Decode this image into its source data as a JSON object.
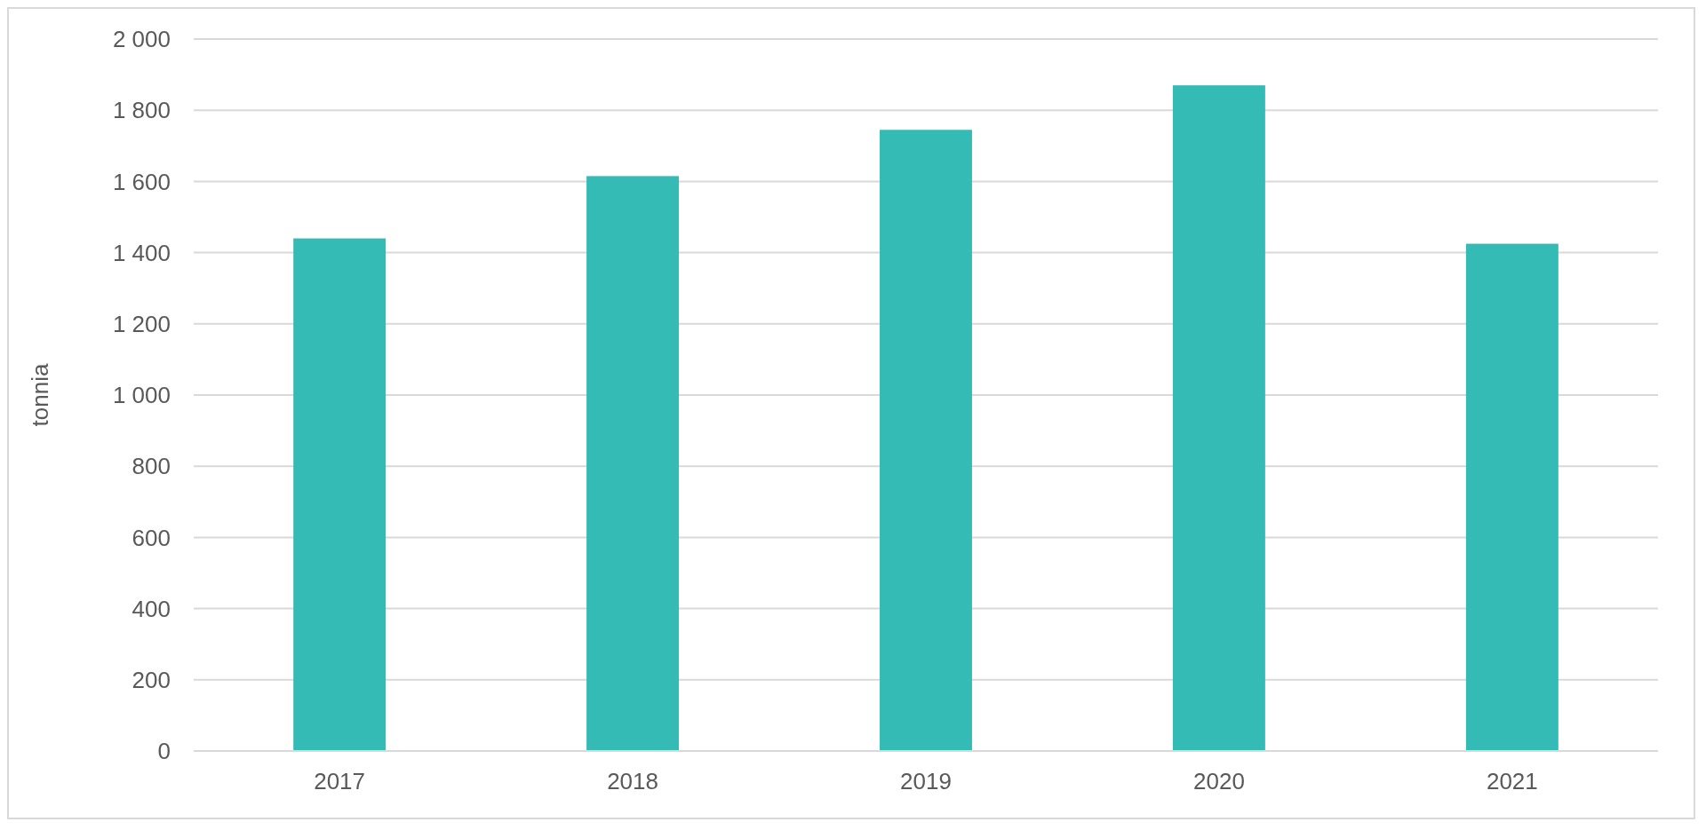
{
  "chart_data": {
    "type": "bar",
    "ylabel": "tonnia",
    "categories": [
      "2017",
      "2018",
      "2019",
      "2020",
      "2021"
    ],
    "values": [
      1440,
      1615,
      1745,
      1870,
      1425
    ],
    "color": "#35bbb6",
    "ylim": [
      0,
      2000
    ],
    "yticks": [
      0,
      200,
      400,
      600,
      800,
      {
        "value": 1000,
        "label": "1 000"
      },
      {
        "value": 1200,
        "label": "1 200"
      },
      {
        "value": 1400,
        "label": "1 400"
      },
      {
        "value": 1600,
        "label": "1 600"
      },
      {
        "value": 1800,
        "label": "1 800"
      },
      {
        "value": 2000,
        "label": "2 000"
      }
    ],
    "grid": "y"
  }
}
